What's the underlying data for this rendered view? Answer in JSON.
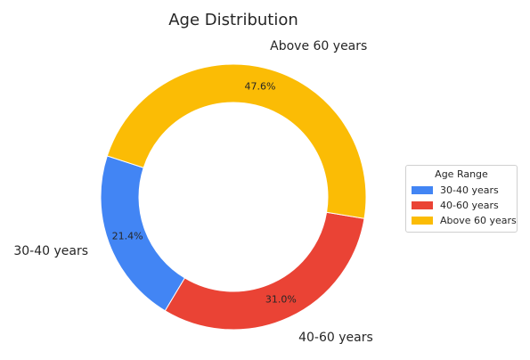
{
  "chart_data": {
    "type": "pie",
    "title": "Age Distribution",
    "categories": [
      "30-40 years",
      "40-60 years",
      "Above 60 years"
    ],
    "values": [
      21.4,
      31.0,
      47.6
    ],
    "percent_labels": [
      "21.4%",
      "31.0%",
      "47.6%"
    ],
    "colors": [
      "#4285f4",
      "#ea4335",
      "#fbbc05"
    ],
    "donut": true,
    "legend": {
      "title": "Age Range",
      "placement": "right",
      "entries": [
        "30-40 years",
        "40-60 years",
        "Above 60 years"
      ]
    }
  }
}
